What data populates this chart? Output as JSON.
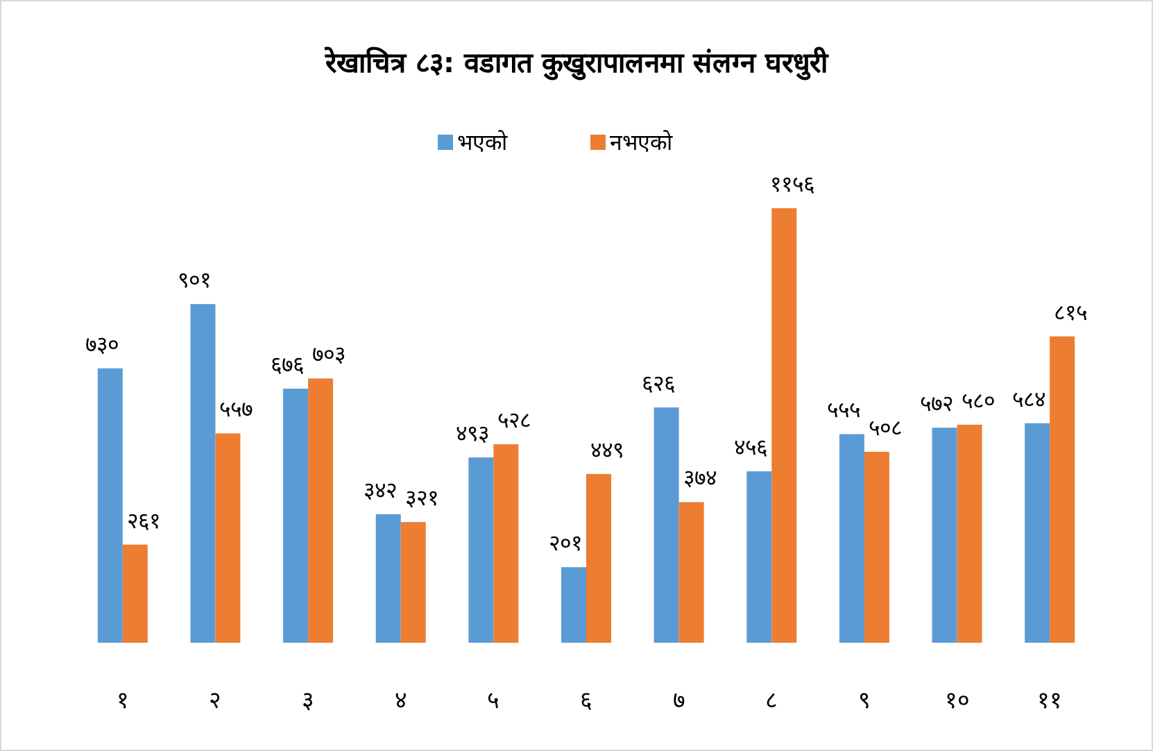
{
  "chart_data": {
    "type": "bar",
    "title": "रेखाचित्र ८३: वडागत कुखुरापालनमा संलग्न घरधुरी",
    "categories": [
      "१",
      "२",
      "३",
      "४",
      "५",
      "६",
      "७",
      "८",
      "९",
      "१०",
      "११"
    ],
    "legend": "top",
    "series": [
      {
        "name": "भएको",
        "color": "#5b9bd5",
        "values": [
          730,
          901,
          676,
          342,
          493,
          201,
          626,
          456,
          555,
          572,
          584
        ],
        "value_labels": [
          "७३०",
          "९०१",
          "६७६",
          "३४२",
          "४९३",
          "२०१",
          "६२६",
          "४५६",
          "५५५",
          "५७२",
          "५८४"
        ]
      },
      {
        "name": "नभएको",
        "color": "#ed7d31",
        "values": [
          261,
          557,
          703,
          321,
          528,
          449,
          374,
          1156,
          508,
          580,
          815
        ],
        "value_labels": [
          "२६१",
          "५५७",
          "७०३",
          "३२१",
          "५२८",
          "४४९",
          "३७४",
          "११५६",
          "५०८",
          "५८०",
          "८१५"
        ]
      }
    ]
  }
}
